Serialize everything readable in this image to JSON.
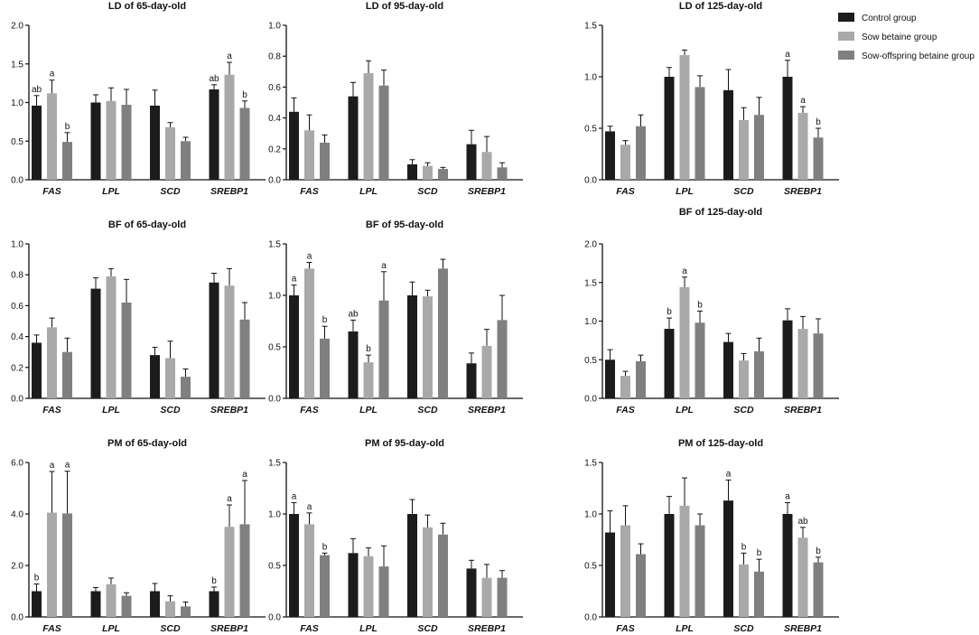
{
  "colors": {
    "control": "#1c1c1c",
    "sow": "#a9a9a9",
    "offspring": "#808080",
    "axis": "#111111"
  },
  "legend": [
    {
      "name": "Control group",
      "color": "#1c1c1c"
    },
    {
      "name": "Sow betaine group",
      "color": "#a9a9a9"
    },
    {
      "name": "Sow-offspring betaine group",
      "color": "#808080"
    }
  ],
  "chart_data": [
    {
      "type": "bar",
      "title": "LD of 65-day-old",
      "categories": [
        "FAS",
        "LPL",
        "SCD",
        "SREBP1"
      ],
      "ylim": [
        0,
        2
      ],
      "yticks": [
        "0.0",
        "0.5",
        "1.0",
        "1.5",
        "2.0"
      ],
      "series": [
        {
          "name": "Control group",
          "values": [
            0.96,
            1.0,
            0.96,
            1.17
          ],
          "errors": [
            0.13,
            0.1,
            0.2,
            0.06
          ],
          "labels": [
            "ab",
            "",
            "",
            "ab"
          ]
        },
        {
          "name": "Sow betaine group",
          "values": [
            1.12,
            1.02,
            0.68,
            1.36
          ],
          "errors": [
            0.17,
            0.17,
            0.06,
            0.16
          ],
          "labels": [
            "a",
            "",
            "",
            "a"
          ]
        },
        {
          "name": "Sow-offspring betaine group",
          "values": [
            0.49,
            0.97,
            0.5,
            0.93
          ],
          "errors": [
            0.12,
            0.2,
            0.05,
            0.09
          ],
          "labels": [
            "b",
            "",
            "",
            "b"
          ]
        }
      ]
    },
    {
      "type": "bar",
      "title": "LD of 95-day-old",
      "categories": [
        "FAS",
        "LPL",
        "SCD",
        "SREBP1"
      ],
      "ylim": [
        0,
        1
      ],
      "yticks": [
        "0.0",
        "0.2",
        "0.4",
        "0.6",
        "0.8",
        "1.0"
      ],
      "series": [
        {
          "name": "Control group",
          "values": [
            0.44,
            0.54,
            0.1,
            0.23
          ],
          "errors": [
            0.09,
            0.09,
            0.03,
            0.09
          ],
          "labels": [
            "",
            "",
            "",
            ""
          ]
        },
        {
          "name": "Sow betaine group",
          "values": [
            0.32,
            0.69,
            0.09,
            0.18
          ],
          "errors": [
            0.1,
            0.08,
            0.02,
            0.1
          ],
          "labels": [
            "",
            "",
            "",
            ""
          ]
        },
        {
          "name": "Sow-offspring betaine group",
          "values": [
            0.24,
            0.61,
            0.07,
            0.08
          ],
          "errors": [
            0.05,
            0.1,
            0.01,
            0.03
          ],
          "labels": [
            "",
            "",
            "",
            ""
          ]
        }
      ]
    },
    {
      "type": "bar",
      "title": "LD of 125-day-old",
      "categories": [
        "FAS",
        "LPL",
        "SCD",
        "SREBP1"
      ],
      "ylim": [
        0,
        1.5
      ],
      "yticks": [
        "0.0",
        "0.5",
        "1.0",
        "1.5"
      ],
      "series": [
        {
          "name": "Control group",
          "values": [
            0.47,
            1.0,
            0.87,
            1.0
          ],
          "errors": [
            0.05,
            0.09,
            0.2,
            0.16
          ],
          "labels": [
            "",
            "",
            "",
            "a"
          ]
        },
        {
          "name": "Sow betaine group",
          "values": [
            0.34,
            1.21,
            0.58,
            0.65
          ],
          "errors": [
            0.04,
            0.05,
            0.12,
            0.06
          ],
          "labels": [
            "",
            "",
            "",
            "a"
          ]
        },
        {
          "name": "Sow-offspring betaine group",
          "values": [
            0.52,
            0.9,
            0.63,
            0.41
          ],
          "errors": [
            0.11,
            0.11,
            0.17,
            0.09
          ],
          "labels": [
            "",
            "",
            "",
            "b"
          ]
        }
      ]
    },
    {
      "type": "bar",
      "title": "BF of 65-day-old",
      "categories": [
        "FAS",
        "LPL",
        "SCD",
        "SREBP1"
      ],
      "ylim": [
        0,
        1
      ],
      "yticks": [
        "0.0",
        "0.2",
        "0.4",
        "0.6",
        "0.8",
        "1.0"
      ],
      "series": [
        {
          "name": "Control group",
          "values": [
            0.36,
            0.71,
            0.28,
            0.75
          ],
          "errors": [
            0.05,
            0.07,
            0.05,
            0.06
          ],
          "labels": [
            "",
            "",
            "",
            ""
          ]
        },
        {
          "name": "Sow betaine group",
          "values": [
            0.46,
            0.79,
            0.26,
            0.73
          ],
          "errors": [
            0.06,
            0.05,
            0.11,
            0.11
          ],
          "labels": [
            "",
            "",
            "",
            ""
          ]
        },
        {
          "name": "Sow-offspring betaine group",
          "values": [
            0.3,
            0.62,
            0.14,
            0.51
          ],
          "errors": [
            0.09,
            0.15,
            0.05,
            0.11
          ],
          "labels": [
            "",
            "",
            "",
            ""
          ]
        }
      ]
    },
    {
      "type": "bar",
      "title": "BF of 95-day-old",
      "categories": [
        "FAS",
        "LPL",
        "SCD",
        "SREBP1"
      ],
      "ylim": [
        0,
        1.5
      ],
      "yticks": [
        "0.0",
        "0.5",
        "1.0",
        "1.5"
      ],
      "series": [
        {
          "name": "Control group",
          "values": [
            1.0,
            0.65,
            1.0,
            0.34
          ],
          "errors": [
            0.1,
            0.11,
            0.13,
            0.1
          ],
          "labels": [
            "a",
            "ab",
            "",
            ""
          ]
        },
        {
          "name": "Sow betaine group",
          "values": [
            1.26,
            0.35,
            0.99,
            0.51
          ],
          "errors": [
            0.06,
            0.07,
            0.06,
            0.16
          ],
          "labels": [
            "a",
            "b",
            "",
            ""
          ]
        },
        {
          "name": "Sow-offspring betaine group",
          "values": [
            0.58,
            0.95,
            1.26,
            0.76
          ],
          "errors": [
            0.12,
            0.28,
            0.09,
            0.24
          ],
          "labels": [
            "b",
            "a",
            "",
            ""
          ]
        }
      ]
    },
    {
      "type": "bar",
      "title": "BF of 125-day-old",
      "categories": [
        "FAS",
        "LPL",
        "SCD",
        "SREBP1"
      ],
      "ylim": [
        0,
        2
      ],
      "yticks": [
        "0.0",
        "0.5",
        "1.0",
        "1.5",
        "2.0"
      ],
      "series": [
        {
          "name": "Control group",
          "values": [
            0.5,
            0.9,
            0.73,
            1.01
          ],
          "errors": [
            0.13,
            0.14,
            0.11,
            0.15
          ],
          "labels": [
            "",
            "b",
            "",
            ""
          ]
        },
        {
          "name": "Sow betaine group",
          "values": [
            0.29,
            1.44,
            0.49,
            0.9
          ],
          "errors": [
            0.06,
            0.13,
            0.09,
            0.16
          ],
          "labels": [
            "",
            "a",
            "",
            ""
          ]
        },
        {
          "name": "Sow-offspring betaine group",
          "values": [
            0.48,
            0.98,
            0.61,
            0.84
          ],
          "errors": [
            0.08,
            0.15,
            0.17,
            0.19
          ],
          "labels": [
            "",
            "b",
            "",
            ""
          ]
        }
      ]
    },
    {
      "type": "bar",
      "title": "PM of 65-day-old",
      "categories": [
        "FAS",
        "LPL",
        "SCD",
        "SREBP1"
      ],
      "ylim": [
        0,
        6
      ],
      "yticks": [
        "0.0",
        "2.0",
        "4.0",
        "6.0"
      ],
      "series": [
        {
          "name": "Control group",
          "values": [
            1.0,
            1.0,
            1.0,
            1.0
          ],
          "errors": [
            0.28,
            0.14,
            0.3,
            0.16
          ],
          "labels": [
            "b",
            "",
            "",
            "b"
          ]
        },
        {
          "name": "Sow betaine group",
          "values": [
            4.05,
            1.27,
            0.61,
            3.5
          ],
          "errors": [
            1.6,
            0.24,
            0.21,
            0.85
          ],
          "labels": [
            "a",
            "",
            "",
            "a"
          ]
        },
        {
          "name": "Sow-offspring betaine group",
          "values": [
            4.02,
            0.82,
            0.41,
            3.6
          ],
          "errors": [
            1.64,
            0.12,
            0.17,
            1.7
          ],
          "labels": [
            "a",
            "",
            "",
            "a"
          ]
        }
      ]
    },
    {
      "type": "bar",
      "title": "PM of 95-day-old",
      "categories": [
        "FAS",
        "LPL",
        "SCD",
        "SREBP1"
      ],
      "ylim": [
        0,
        1.5
      ],
      "yticks": [
        "0.0",
        "0.5",
        "1.0",
        "1.5"
      ],
      "series": [
        {
          "name": "Control group",
          "values": [
            1.0,
            0.62,
            1.0,
            0.47
          ],
          "errors": [
            0.11,
            0.14,
            0.14,
            0.08
          ],
          "labels": [
            "a",
            "",
            "",
            ""
          ]
        },
        {
          "name": "Sow betaine group",
          "values": [
            0.9,
            0.59,
            0.87,
            0.38
          ],
          "errors": [
            0.11,
            0.08,
            0.12,
            0.13
          ],
          "labels": [
            "a",
            "",
            "",
            ""
          ]
        },
        {
          "name": "Sow-offspring betaine group",
          "values": [
            0.6,
            0.49,
            0.8,
            0.38
          ],
          "errors": [
            0.02,
            0.2,
            0.11,
            0.07
          ],
          "labels": [
            "b",
            "",
            "",
            ""
          ]
        }
      ]
    },
    {
      "type": "bar",
      "title": "PM of 125-day-old",
      "categories": [
        "FAS",
        "LPL",
        "SCD",
        "SREBP1"
      ],
      "ylim": [
        0,
        1.5
      ],
      "yticks": [
        "0.0",
        "0.5",
        "1.0",
        "1.5"
      ],
      "series": [
        {
          "name": "Control group",
          "values": [
            0.82,
            1.0,
            1.13,
            1.0
          ],
          "errors": [
            0.21,
            0.17,
            0.2,
            0.11
          ],
          "labels": [
            "",
            "",
            "a",
            "a"
          ]
        },
        {
          "name": "Sow betaine group",
          "values": [
            0.89,
            1.08,
            0.51,
            0.77
          ],
          "errors": [
            0.19,
            0.27,
            0.11,
            0.1
          ],
          "labels": [
            "",
            "",
            "b",
            "ab"
          ]
        },
        {
          "name": "Sow-offspring betaine group",
          "values": [
            0.61,
            0.89,
            0.44,
            0.53
          ],
          "errors": [
            0.1,
            0.11,
            0.12,
            0.05
          ],
          "labels": [
            "",
            "",
            "b",
            "b"
          ]
        }
      ]
    }
  ]
}
